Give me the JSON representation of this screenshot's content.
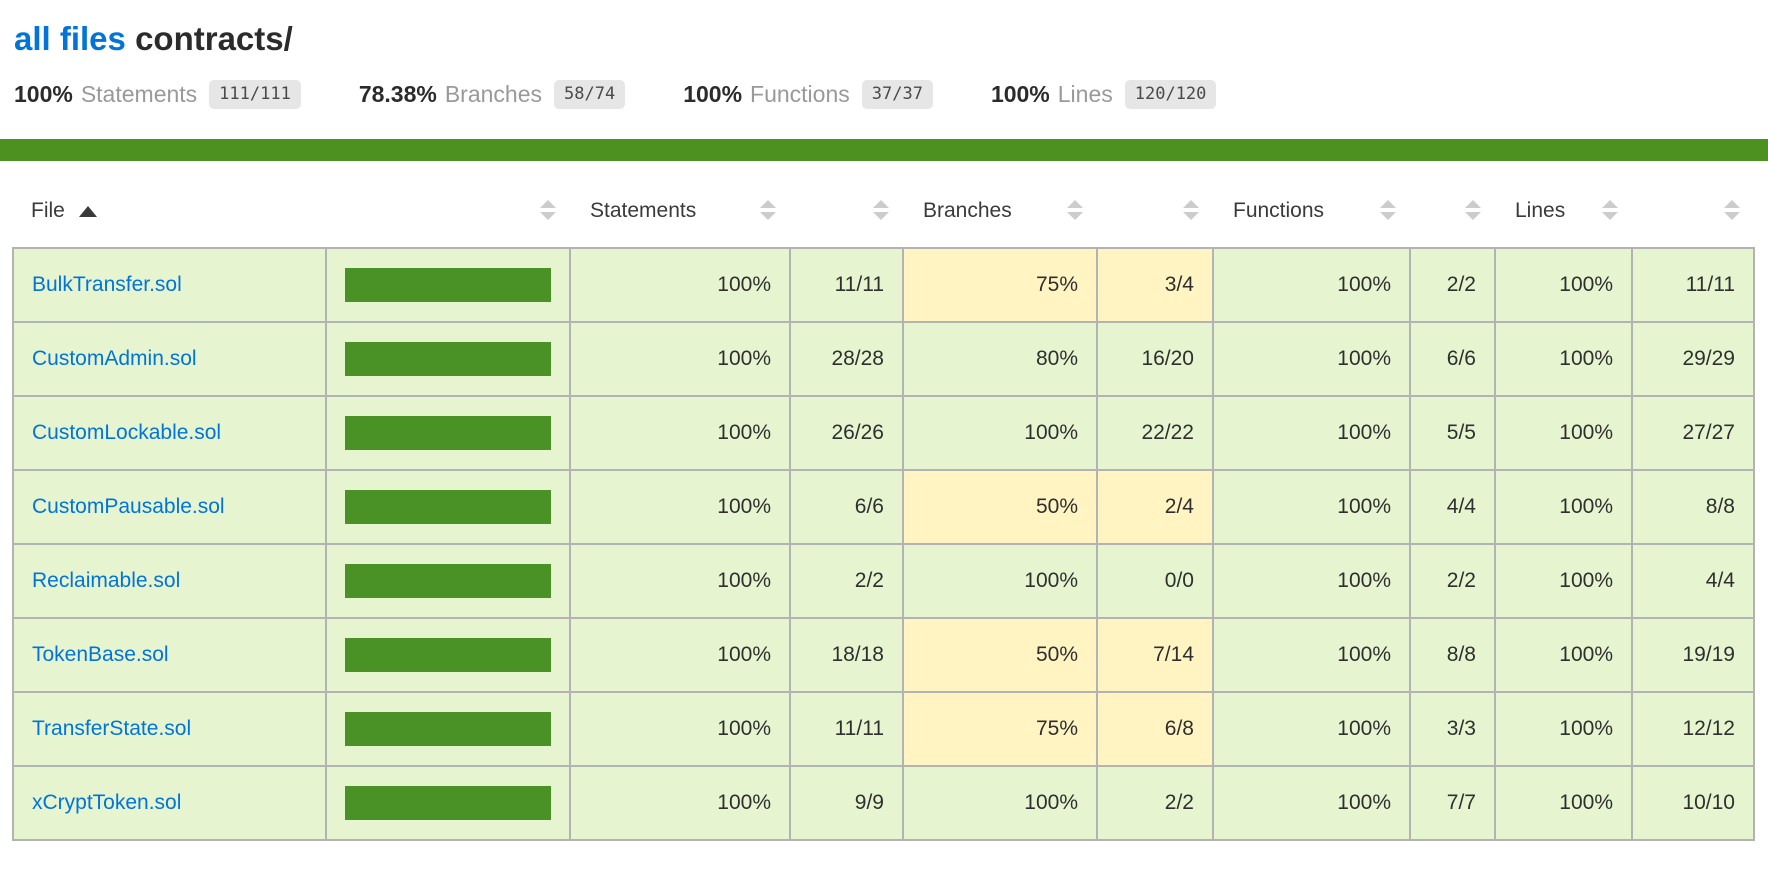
{
  "page": {
    "title_link": "all files",
    "title_path": "contracts/"
  },
  "summary": [
    {
      "pct": "100%",
      "label": "Statements",
      "fraction": "111/111"
    },
    {
      "pct": "78.38%",
      "label": "Branches",
      "fraction": "58/74"
    },
    {
      "pct": "100%",
      "label": "Functions",
      "fraction": "37/37"
    },
    {
      "pct": "100%",
      "label": "Lines",
      "fraction": "120/120"
    }
  ],
  "table": {
    "headers": {
      "file": "File",
      "statements": "Statements",
      "branches": "Branches",
      "functions": "Functions",
      "lines": "Lines"
    },
    "sort": {
      "column": "File",
      "direction": "asc"
    },
    "rows": [
      {
        "file": "BulkTransfer.sol",
        "bar_pct": 100,
        "statements": {
          "pct": "100%",
          "raw": "11/11",
          "level": "high"
        },
        "branches": {
          "pct": "75%",
          "raw": "3/4",
          "level": "medium"
        },
        "functions": {
          "pct": "100%",
          "raw": "2/2",
          "level": "high"
        },
        "lines": {
          "pct": "100%",
          "raw": "11/11",
          "level": "high"
        }
      },
      {
        "file": "CustomAdmin.sol",
        "bar_pct": 100,
        "statements": {
          "pct": "100%",
          "raw": "28/28",
          "level": "high"
        },
        "branches": {
          "pct": "80%",
          "raw": "16/20",
          "level": "high"
        },
        "functions": {
          "pct": "100%",
          "raw": "6/6",
          "level": "high"
        },
        "lines": {
          "pct": "100%",
          "raw": "29/29",
          "level": "high"
        }
      },
      {
        "file": "CustomLockable.sol",
        "bar_pct": 100,
        "statements": {
          "pct": "100%",
          "raw": "26/26",
          "level": "high"
        },
        "branches": {
          "pct": "100%",
          "raw": "22/22",
          "level": "high"
        },
        "functions": {
          "pct": "100%",
          "raw": "5/5",
          "level": "high"
        },
        "lines": {
          "pct": "100%",
          "raw": "27/27",
          "level": "high"
        }
      },
      {
        "file": "CustomPausable.sol",
        "bar_pct": 100,
        "statements": {
          "pct": "100%",
          "raw": "6/6",
          "level": "high"
        },
        "branches": {
          "pct": "50%",
          "raw": "2/4",
          "level": "medium"
        },
        "functions": {
          "pct": "100%",
          "raw": "4/4",
          "level": "high"
        },
        "lines": {
          "pct": "100%",
          "raw": "8/8",
          "level": "high"
        }
      },
      {
        "file": "Reclaimable.sol",
        "bar_pct": 100,
        "statements": {
          "pct": "100%",
          "raw": "2/2",
          "level": "high"
        },
        "branches": {
          "pct": "100%",
          "raw": "0/0",
          "level": "high"
        },
        "functions": {
          "pct": "100%",
          "raw": "2/2",
          "level": "high"
        },
        "lines": {
          "pct": "100%",
          "raw": "4/4",
          "level": "high"
        }
      },
      {
        "file": "TokenBase.sol",
        "bar_pct": 100,
        "statements": {
          "pct": "100%",
          "raw": "18/18",
          "level": "high"
        },
        "branches": {
          "pct": "50%",
          "raw": "7/14",
          "level": "medium"
        },
        "functions": {
          "pct": "100%",
          "raw": "8/8",
          "level": "high"
        },
        "lines": {
          "pct": "100%",
          "raw": "19/19",
          "level": "high"
        }
      },
      {
        "file": "TransferState.sol",
        "bar_pct": 100,
        "statements": {
          "pct": "100%",
          "raw": "11/11",
          "level": "high"
        },
        "branches": {
          "pct": "75%",
          "raw": "6/8",
          "level": "medium"
        },
        "functions": {
          "pct": "100%",
          "raw": "3/3",
          "level": "high"
        },
        "lines": {
          "pct": "100%",
          "raw": "12/12",
          "level": "high"
        }
      },
      {
        "file": "xCryptToken.sol",
        "bar_pct": 100,
        "statements": {
          "pct": "100%",
          "raw": "9/9",
          "level": "high"
        },
        "branches": {
          "pct": "100%",
          "raw": "2/2",
          "level": "high"
        },
        "functions": {
          "pct": "100%",
          "raw": "7/7",
          "level": "high"
        },
        "lines": {
          "pct": "100%",
          "raw": "10/10",
          "level": "high"
        }
      }
    ]
  },
  "colors": {
    "high_bg": "#e6f5d0",
    "medium_bg": "#fff4c2",
    "bar_green": "#4a9226",
    "status_line_green": "#4d9221",
    "link_blue": "#0074d9",
    "fraction_chip_bg": "#e6e6e6",
    "border_gray": "#b3b3b3"
  }
}
